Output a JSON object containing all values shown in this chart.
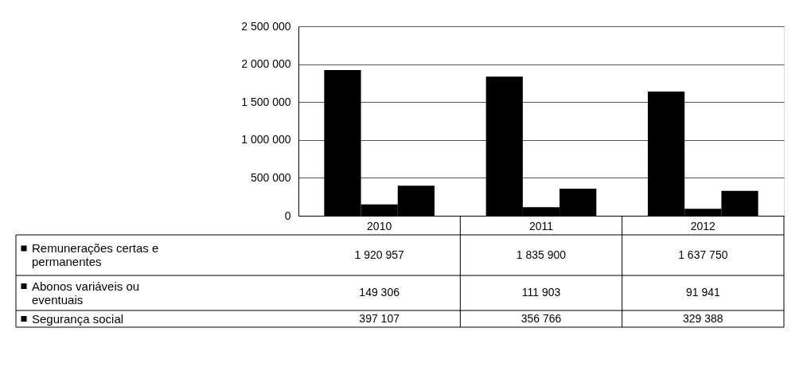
{
  "chart_data": {
    "type": "bar",
    "categories": [
      "2010",
      "2011",
      "2012"
    ],
    "series": [
      {
        "name": "Remunerações certas e permanentes",
        "color": "#000000",
        "values": [
          1920957,
          1835900,
          1637750
        ],
        "value_labels": [
          "1 920 957",
          "1 835 900",
          "1 637 750"
        ]
      },
      {
        "name": "Abonos variáveis ou eventuais",
        "color": "#000000",
        "values": [
          149306,
          111903,
          91941
        ],
        "value_labels": [
          "149 306",
          "111 903",
          "91 941"
        ]
      },
      {
        "name": "Segurança social",
        "color": "#000000",
        "values": [
          397107,
          356766,
          329388
        ],
        "value_labels": [
          "397 107",
          "356 766",
          "329 388"
        ]
      }
    ],
    "ylim": [
      0,
      2500000
    ],
    "yticks": [
      {
        "value": 0,
        "label": "0"
      },
      {
        "value": 500000,
        "label": "500 000"
      },
      {
        "value": 1000000,
        "label": "1 000 000"
      },
      {
        "value": 1500000,
        "label": "1 500 000"
      },
      {
        "value": 2000000,
        "label": "2 000 000"
      },
      {
        "value": 2500000,
        "label": "2 500 000"
      }
    ],
    "grid": "y",
    "legend": "bottom left"
  }
}
